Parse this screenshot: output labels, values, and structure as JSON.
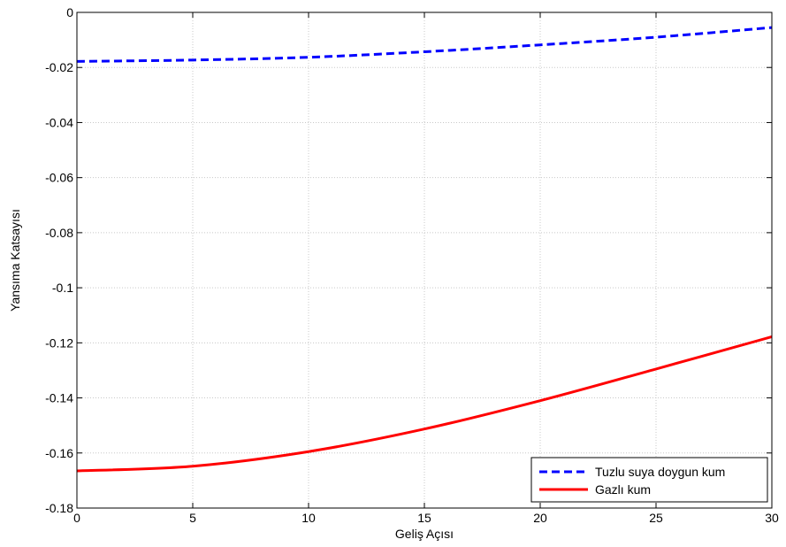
{
  "chart_data": {
    "type": "line",
    "title": "",
    "xlabel": "Geliş Açısı",
    "ylabel": "Yansıma Katsayısı",
    "xlim": [
      0,
      30
    ],
    "ylim": [
      -0.18,
      0
    ],
    "xticks": [
      0,
      5,
      10,
      15,
      20,
      25,
      30
    ],
    "xtick_labels": [
      "0",
      "5",
      "10",
      "15",
      "20",
      "25",
      "30"
    ],
    "yticks": [
      0,
      -0.02,
      -0.04,
      -0.06,
      -0.08,
      -0.1,
      -0.12,
      -0.14,
      -0.16,
      -0.18
    ],
    "ytick_labels": [
      "0",
      "-0.02",
      "-0.04",
      "-0.06",
      "-0.08",
      "-0.1",
      "-0.12",
      "-0.14",
      "-0.16",
      "-0.18"
    ],
    "grid": true,
    "legend_position": "bottom-right",
    "series": [
      {
        "name": "Tuzlu suya doygun kum",
        "color": "#0000ff",
        "style": "dashed",
        "x": [
          0,
          5,
          10,
          15,
          20,
          25,
          30
        ],
        "y": [
          -0.0178,
          -0.0173,
          -0.0163,
          -0.0143,
          -0.0118,
          -0.009,
          -0.0055
        ]
      },
      {
        "name": "Gazlı kum",
        "color": "#ff0000",
        "style": "solid",
        "x": [
          0,
          5,
          10,
          15,
          20,
          25,
          30
        ],
        "y": [
          -0.1665,
          -0.1648,
          -0.1595,
          -0.1513,
          -0.141,
          -0.1295,
          -0.1178
        ]
      }
    ]
  }
}
